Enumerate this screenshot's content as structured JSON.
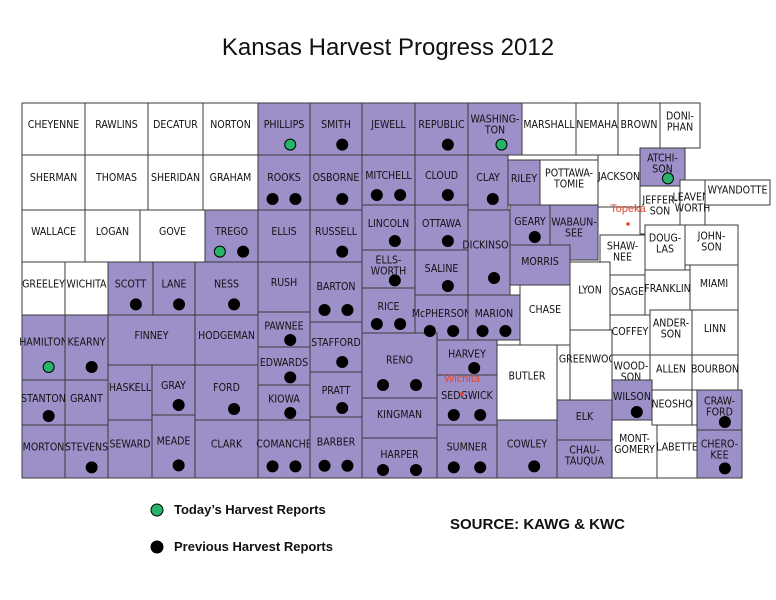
{
  "title": "Kansas Harvest Progress 2012",
  "colors": {
    "harvested": "#9d90c9",
    "other": "#ffffff",
    "outline": "#3a3a3a",
    "city": "#e8462a"
  },
  "legend": [
    {
      "label": "Today’s Harvest Reports",
      "color": "#27b36a"
    },
    {
      "label": "Previous Harvest Reports",
      "color": "#000000"
    }
  ],
  "source": "SOURCE: KAWG & KWC",
  "cities": [
    {
      "name": "Topeka"
    },
    {
      "name": "Wichita"
    }
  ],
  "counties": [
    {
      "name": "CHEYENNE",
      "harvest": false,
      "reports": []
    },
    {
      "name": "RAWLINS",
      "harvest": false,
      "reports": []
    },
    {
      "name": "DECATUR",
      "harvest": false,
      "reports": []
    },
    {
      "name": "NORTON",
      "harvest": false,
      "reports": []
    },
    {
      "name": "PHILLIPS",
      "harvest": true,
      "reports": [
        0
      ]
    },
    {
      "name": "SMITH",
      "harvest": true,
      "reports": [
        1
      ]
    },
    {
      "name": "JEWELL",
      "harvest": true,
      "reports": []
    },
    {
      "name": "REPUBLIC",
      "harvest": true,
      "reports": [
        1
      ]
    },
    {
      "name": "WASHING-\nTON",
      "harvest": true,
      "reports": [
        0
      ]
    },
    {
      "name": "MARSHALL",
      "harvest": false,
      "reports": []
    },
    {
      "name": "NEMAHA",
      "harvest": false,
      "reports": []
    },
    {
      "name": "BROWN",
      "harvest": false,
      "reports": []
    },
    {
      "name": "DONI-\nPHAN",
      "harvest": false,
      "reports": []
    },
    {
      "name": "SHERMAN",
      "harvest": false,
      "reports": []
    },
    {
      "name": "THOMAS",
      "harvest": false,
      "reports": []
    },
    {
      "name": "SHERIDAN",
      "harvest": false,
      "reports": []
    },
    {
      "name": "GRAHAM",
      "harvest": false,
      "reports": []
    },
    {
      "name": "ROOKS",
      "harvest": true,
      "reports": [
        1,
        1
      ]
    },
    {
      "name": "OSBORNE",
      "harvest": true,
      "reports": [
        1
      ]
    },
    {
      "name": "MITCHELL",
      "harvest": true,
      "reports": [
        1,
        1
      ]
    },
    {
      "name": "CLOUD",
      "harvest": true,
      "reports": [
        1
      ]
    },
    {
      "name": "CLAY",
      "harvest": true,
      "reports": [
        1
      ]
    },
    {
      "name": "RILEY",
      "harvest": true,
      "reports": []
    },
    {
      "name": "POTTAWA-\nTOMIE",
      "harvest": false,
      "reports": []
    },
    {
      "name": "JACKSON",
      "harvest": false,
      "reports": []
    },
    {
      "name": "ATCHI-\nSON",
      "harvest": true,
      "reports": [
        0
      ]
    },
    {
      "name": "JEFFER-\nSON",
      "harvest": false,
      "reports": []
    },
    {
      "name": "LEAVEN-\nWORTH",
      "harvest": false,
      "reports": []
    },
    {
      "name": "WYANDOTTE",
      "harvest": false,
      "reports": []
    },
    {
      "name": "WALLACE",
      "harvest": false,
      "reports": []
    },
    {
      "name": "LOGAN",
      "harvest": false,
      "reports": []
    },
    {
      "name": "GOVE",
      "harvest": false,
      "reports": []
    },
    {
      "name": "TREGO",
      "harvest": true,
      "reports": [
        1,
        0
      ]
    },
    {
      "name": "ELLIS",
      "harvest": true,
      "reports": []
    },
    {
      "name": "RUSSELL",
      "harvest": true,
      "reports": [
        1
      ]
    },
    {
      "name": "LINCOLN",
      "harvest": true,
      "reports": [
        1
      ]
    },
    {
      "name": "OTTAWA",
      "harvest": true,
      "reports": [
        1
      ]
    },
    {
      "name": "DICKINSON",
      "harvest": true,
      "reports": [
        1
      ]
    },
    {
      "name": "GEARY",
      "harvest": true,
      "reports": [
        1
      ]
    },
    {
      "name": "WABAUN-\nSEE",
      "harvest": true,
      "reports": []
    },
    {
      "name": "SHAW-\nNEE",
      "harvest": false,
      "reports": []
    },
    {
      "name": "DOUG-\nLAS",
      "harvest": false,
      "reports": []
    },
    {
      "name": "JOHN-\nSON",
      "harvest": false,
      "reports": []
    },
    {
      "name": "GREELEY",
      "harvest": false,
      "reports": []
    },
    {
      "name": "WICHITA",
      "harvest": false,
      "reports": []
    },
    {
      "name": "SCOTT",
      "harvest": true,
      "reports": [
        1
      ]
    },
    {
      "name": "LANE",
      "harvest": true,
      "reports": [
        1
      ]
    },
    {
      "name": "NESS",
      "harvest": true,
      "reports": [
        1
      ]
    },
    {
      "name": "RUSH",
      "harvest": true,
      "reports": []
    },
    {
      "name": "BARTON",
      "harvest": true,
      "reports": [
        1,
        1
      ]
    },
    {
      "name": "ELLS-\nWORTH",
      "harvest": true,
      "reports": [
        1
      ]
    },
    {
      "name": "SALINE",
      "harvest": true,
      "reports": [
        1
      ]
    },
    {
      "name": "MORRIS",
      "harvest": true,
      "reports": []
    },
    {
      "name": "LYON",
      "harvest": false,
      "reports": []
    },
    {
      "name": "OSAGE",
      "harvest": false,
      "reports": []
    },
    {
      "name": "FRANKLIN",
      "harvest": false,
      "reports": []
    },
    {
      "name": "MIAMI",
      "harvest": false,
      "reports": []
    },
    {
      "name": "HAMILTON",
      "harvest": true,
      "reports": [
        0
      ]
    },
    {
      "name": "KEARNY",
      "harvest": true,
      "reports": [
        1
      ]
    },
    {
      "name": "FINNEY",
      "harvest": true,
      "reports": []
    },
    {
      "name": "HODGEMAN",
      "harvest": true,
      "reports": []
    },
    {
      "name": "PAWNEE",
      "harvest": true,
      "reports": [
        1
      ]
    },
    {
      "name": "RICE",
      "harvest": true,
      "reports": [
        1,
        1
      ]
    },
    {
      "name": "McPHERSON",
      "harvest": true,
      "reports": [
        1,
        1
      ]
    },
    {
      "name": "MARION",
      "harvest": true,
      "reports": [
        1,
        1
      ]
    },
    {
      "name": "CHASE",
      "harvest": false,
      "reports": []
    },
    {
      "name": "COFFEY",
      "harvest": false,
      "reports": []
    },
    {
      "name": "ANDER-\nSON",
      "harvest": false,
      "reports": []
    },
    {
      "name": "LINN",
      "harvest": false,
      "reports": []
    },
    {
      "name": "STAFFORD",
      "harvest": true,
      "reports": [
        1
      ]
    },
    {
      "name": "RENO",
      "harvest": true,
      "reports": [
        1,
        1
      ]
    },
    {
      "name": "HARVEY",
      "harvest": true,
      "reports": [
        1
      ]
    },
    {
      "name": "GREENWOOD",
      "harvest": false,
      "reports": []
    },
    {
      "name": "WOOD-\nSON",
      "harvest": false,
      "reports": []
    },
    {
      "name": "ALLEN",
      "harvest": false,
      "reports": []
    },
    {
      "name": "BOURBON",
      "harvest": false,
      "reports": []
    },
    {
      "name": "EDWARDS",
      "harvest": true,
      "reports": [
        1
      ]
    },
    {
      "name": "GRAY",
      "harvest": true,
      "reports": [
        1
      ]
    },
    {
      "name": "FORD",
      "harvest": true,
      "reports": [
        1
      ]
    },
    {
      "name": "HASKELL",
      "harvest": true,
      "reports": []
    },
    {
      "name": "GRANT",
      "harvest": true,
      "reports": []
    },
    {
      "name": "STANTON",
      "harvest": true,
      "reports": [
        1
      ]
    },
    {
      "name": "BUTLER",
      "harvest": false,
      "reports": []
    },
    {
      "name": "SEDGWICK",
      "harvest": true,
      "reports": [
        1,
        1
      ]
    },
    {
      "name": "KINGMAN",
      "harvest": true,
      "reports": []
    },
    {
      "name": "PRATT",
      "harvest": true,
      "reports": [
        1
      ]
    },
    {
      "name": "KIOWA",
      "harvest": true,
      "reports": [
        1
      ]
    },
    {
      "name": "MORTON",
      "harvest": true,
      "reports": []
    },
    {
      "name": "STEVENS",
      "harvest": true,
      "reports": [
        1
      ]
    },
    {
      "name": "SEWARD",
      "harvest": true,
      "reports": []
    },
    {
      "name": "MEADE",
      "harvest": true,
      "reports": [
        1
      ]
    },
    {
      "name": "CLARK",
      "harvest": true,
      "reports": []
    },
    {
      "name": "COMANCHE",
      "harvest": true,
      "reports": [
        1,
        1
      ]
    },
    {
      "name": "BARBER",
      "harvest": true,
      "reports": [
        1,
        1
      ]
    },
    {
      "name": "HARPER",
      "harvest": true,
      "reports": [
        1,
        1
      ]
    },
    {
      "name": "SUMNER",
      "harvest": true,
      "reports": [
        1,
        1
      ]
    },
    {
      "name": "COWLEY",
      "harvest": true,
      "reports": [
        1
      ]
    },
    {
      "name": "ELK",
      "harvest": true,
      "reports": []
    },
    {
      "name": "CHAU-\nTAUQUA",
      "harvest": true,
      "reports": []
    },
    {
      "name": "MONT-\nGOMERY",
      "harvest": false,
      "reports": []
    },
    {
      "name": "WILSON",
      "harvest": true,
      "reports": [
        1
      ]
    },
    {
      "name": "NEOSHO",
      "harvest": false,
      "reports": []
    },
    {
      "name": "LABETTE",
      "harvest": false,
      "reports": []
    },
    {
      "name": "CRAW-\nFORD",
      "harvest": true,
      "reports": [
        1
      ]
    },
    {
      "name": "CHERO-\nKEE",
      "harvest": true,
      "reports": [
        1
      ]
    }
  ]
}
